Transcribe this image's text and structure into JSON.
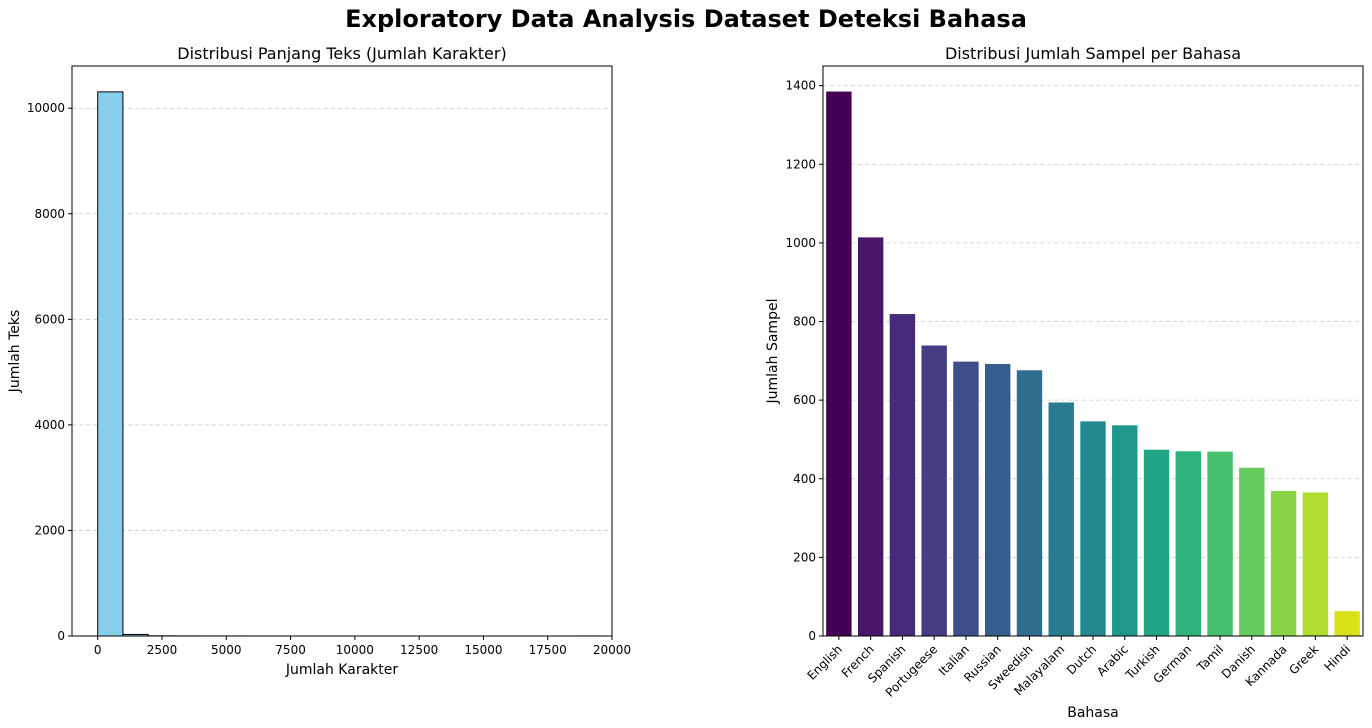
{
  "figure": {
    "suptitle": "Exploratory Data Analysis Dataset Deteksi Bahasa"
  },
  "chart_data": [
    {
      "type": "bar",
      "title": "Distribusi Panjang Teks (Jumlah Karakter)",
      "xlabel": "Jumlah Karakter",
      "ylabel": "Jumlah Teks",
      "xlim": [
        -1000,
        20000
      ],
      "ylim": [
        0,
        10800
      ],
      "xticks": [
        0,
        2500,
        5000,
        7500,
        10000,
        12500,
        15000,
        17500,
        20000
      ],
      "yticks": [
        0,
        2000,
        4000,
        6000,
        8000,
        10000
      ],
      "bin_edges": [
        0,
        980,
        1960,
        2940,
        3920,
        4900,
        5880,
        6860,
        7840,
        8820,
        9800,
        10780,
        11760,
        12740,
        13720,
        14700,
        15680,
        16660,
        17640,
        18620,
        19600
      ],
      "values": [
        10310,
        30,
        3,
        2,
        1,
        1,
        0,
        0,
        0,
        0,
        0,
        0,
        0,
        0,
        0,
        0,
        0,
        0,
        0,
        1
      ],
      "color": "#87ceeb",
      "edgecolor": "#000000",
      "grid": "y"
    },
    {
      "type": "bar",
      "title": "Distribusi Jumlah Sampel per Bahasa",
      "xlabel": "Bahasa",
      "ylabel": "Jumlah Sampel",
      "ylim": [
        0,
        1450
      ],
      "yticks": [
        0,
        200,
        400,
        600,
        800,
        1000,
        1200,
        1400
      ],
      "categories": [
        "English",
        "French",
        "Spanish",
        "Portugeese",
        "Italian",
        "Russian",
        "Sweedish",
        "Malayalam",
        "Dutch",
        "Arabic",
        "Turkish",
        "German",
        "Tamil",
        "Danish",
        "Kannada",
        "Greek",
        "Hindi"
      ],
      "values": [
        1385,
        1014,
        819,
        739,
        698,
        692,
        676,
        594,
        546,
        536,
        474,
        470,
        469,
        428,
        369,
        365,
        63
      ],
      "colors": [
        "#440154",
        "#481769",
        "#472a7a",
        "#433d84",
        "#3d4e8a",
        "#355e8d",
        "#2e6d8e",
        "#297b8e",
        "#23898e",
        "#1f978b",
        "#21a585",
        "#2eb37c",
        "#46c06f",
        "#65cb5e",
        "#89d548",
        "#b0dd2f",
        "#d8e219"
      ],
      "grid": "y"
    }
  ]
}
